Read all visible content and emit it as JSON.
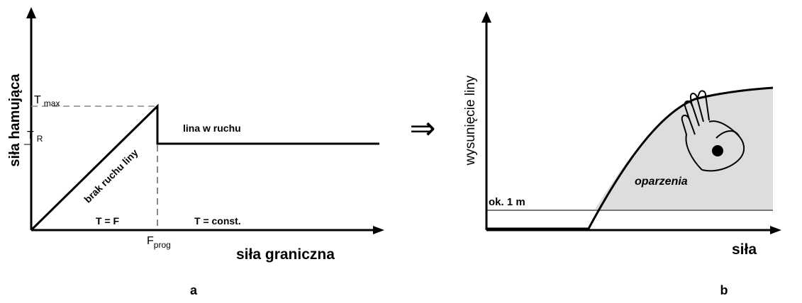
{
  "panel_a": {
    "y_axis_label": "siła hamująca",
    "x_axis_label": "siła graniczna",
    "t_max": {
      "symbol": "T",
      "subscript": "max"
    },
    "t_r": {
      "symbol": "T",
      "subscript": "R"
    },
    "f_prog": {
      "symbol": "F",
      "subscript": "prog"
    },
    "ramp_label": "brak ruchu liny",
    "plateau_label": "lina w ruchu",
    "left_region_label": "T = F",
    "right_region_label": "T = const.",
    "caption": "a"
  },
  "arrow": "⇒",
  "panel_b": {
    "y_axis_label": "wysunięcie liny",
    "x_axis_label": "siła",
    "level_label": "ok. 1 m",
    "region_label": "oparzenia",
    "caption": "b"
  }
}
